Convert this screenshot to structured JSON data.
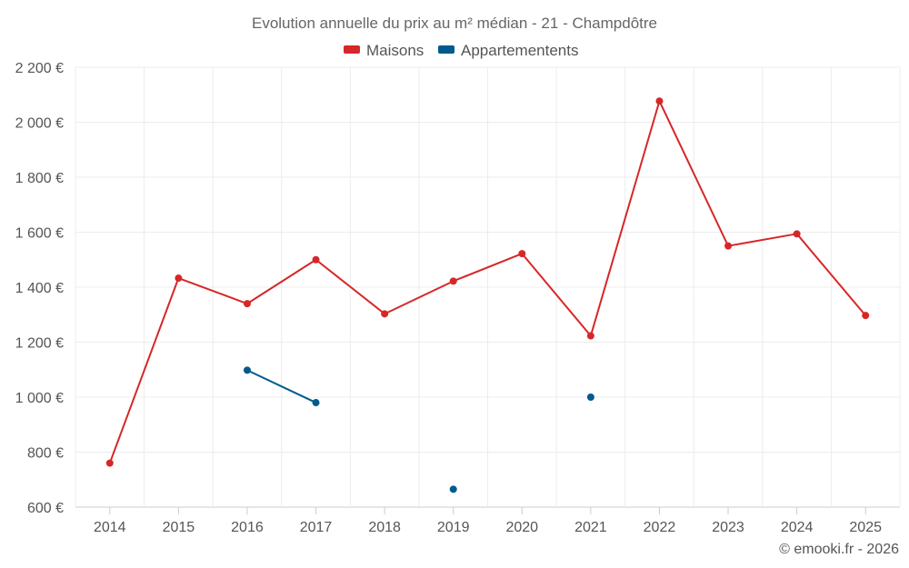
{
  "chart_data": {
    "type": "line",
    "title": "Evolution annuelle du prix au m² médian - 21 - Champdôtre",
    "categories": [
      "2014",
      "2015",
      "2016",
      "2017",
      "2018",
      "2019",
      "2020",
      "2021",
      "2022",
      "2023",
      "2024",
      "2025"
    ],
    "series": [
      {
        "name": "Maisons",
        "color": "#d62728",
        "values": [
          760,
          1433,
          1340,
          1500,
          1303,
          1422,
          1522,
          1223,
          2077,
          1550,
          1594,
          1297
        ]
      },
      {
        "name": "Appartementents",
        "color": "#005a8c",
        "values": [
          null,
          null,
          1098,
          980,
          null,
          665,
          null,
          1000,
          null,
          null,
          null,
          null
        ]
      }
    ],
    "ylim": [
      600,
      2200
    ],
    "yticks": [
      600,
      800,
      1000,
      1200,
      1400,
      1600,
      1800,
      2000,
      2200
    ],
    "ytick_labels": [
      "600 €",
      "800 €",
      "1 000 €",
      "1 200 €",
      "1 400 €",
      "1 600 €",
      "1 800 €",
      "2 000 €",
      "2 200 €"
    ],
    "grid": true,
    "legend": "top-center",
    "credit": "© emooki.fr - 2026"
  }
}
